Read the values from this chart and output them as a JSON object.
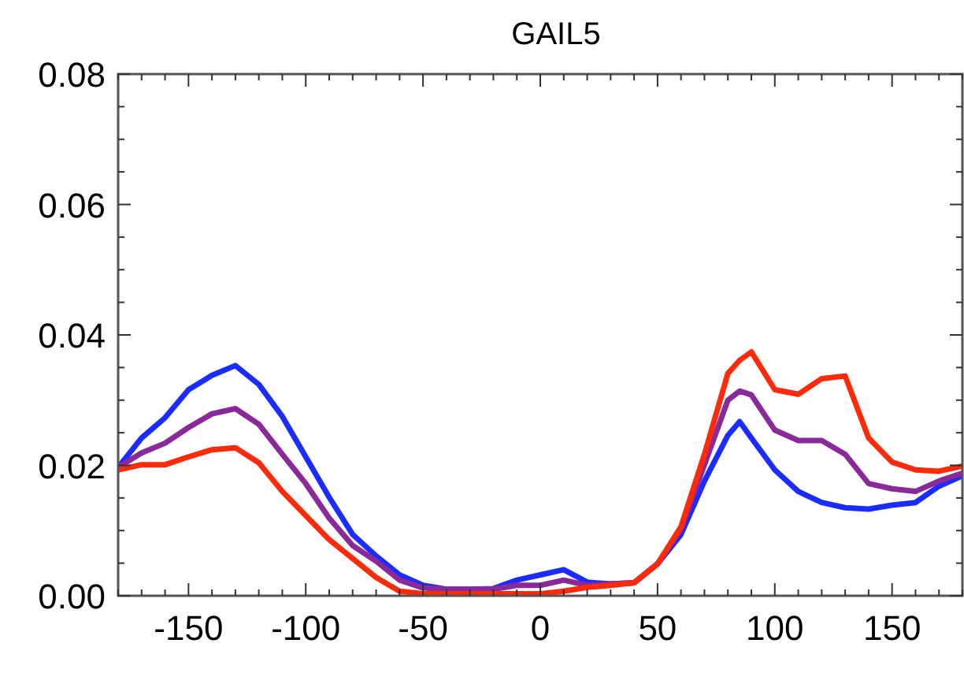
{
  "chart_data": {
    "type": "line",
    "title": "GAIL5",
    "x": [
      -180,
      -170,
      -160,
      -150,
      -140,
      -130,
      -120,
      -110,
      -100,
      -90,
      -80,
      -70,
      -60,
      -50,
      -40,
      -30,
      -20,
      -10,
      0,
      10,
      20,
      30,
      40,
      50,
      60,
      70,
      80,
      85,
      90,
      100,
      110,
      120,
      130,
      140,
      150,
      160,
      170,
      180
    ],
    "series": [
      {
        "color": "#1a2cff",
        "values": [
          0.0197,
          0.0242,
          0.0273,
          0.0316,
          0.0338,
          0.0353,
          0.0324,
          0.0275,
          0.0213,
          0.0151,
          0.0094,
          0.0061,
          0.0032,
          0.0016,
          0.001,
          0.001,
          0.0011,
          0.0024,
          0.0032,
          0.004,
          0.0021,
          0.0018,
          0.002,
          0.0049,
          0.0094,
          0.0176,
          0.0246,
          0.0267,
          0.0242,
          0.0193,
          0.016,
          0.0143,
          0.0135,
          0.0133,
          0.0139,
          0.0143,
          0.0168,
          0.0184
        ]
      },
      {
        "color": "#8a2a9a",
        "values": [
          0.0197,
          0.0219,
          0.0234,
          0.0258,
          0.0279,
          0.0287,
          0.0263,
          0.0217,
          0.0172,
          0.0119,
          0.0077,
          0.0053,
          0.0024,
          0.0012,
          0.001,
          0.001,
          0.001,
          0.0016,
          0.0016,
          0.0024,
          0.0016,
          0.0018,
          0.002,
          0.0049,
          0.0102,
          0.0201,
          0.03,
          0.0314,
          0.0308,
          0.0254,
          0.0238,
          0.0238,
          0.0217,
          0.0172,
          0.0164,
          0.016,
          0.0176,
          0.0188
        ]
      },
      {
        "color": "#ff2a0a",
        "values": [
          0.0193,
          0.0201,
          0.0201,
          0.0213,
          0.0224,
          0.0227,
          0.0204,
          0.016,
          0.0123,
          0.0086,
          0.0057,
          0.0028,
          0.0007,
          0.0003,
          0.0003,
          0.0003,
          0.0003,
          0.0003,
          0.0003,
          0.0007,
          0.0013,
          0.0016,
          0.002,
          0.0049,
          0.0106,
          0.0217,
          0.0341,
          0.0361,
          0.0374,
          0.0316,
          0.0309,
          0.0333,
          0.0337,
          0.0242,
          0.0205,
          0.0193,
          0.0191,
          0.0199
        ]
      }
    ],
    "xlim": [
      -180,
      180
    ],
    "xticks": [
      {
        "value": -180,
        "label": null
      },
      {
        "value": -170,
        "label": null
      },
      {
        "value": -160,
        "label": null
      },
      -150,
      {
        "value": -140,
        "label": null
      },
      {
        "value": -130,
        "label": null
      },
      {
        "value": -120,
        "label": null
      },
      {
        "value": -110,
        "label": null
      },
      -100,
      {
        "value": -90,
        "label": null
      },
      {
        "value": -80,
        "label": null
      },
      {
        "value": -70,
        "label": null
      },
      {
        "value": -60,
        "label": null
      },
      -50,
      {
        "value": -40,
        "label": null
      },
      {
        "value": -30,
        "label": null
      },
      {
        "value": -20,
        "label": null
      },
      {
        "value": -10,
        "label": null
      },
      0,
      {
        "value": 10,
        "label": null
      },
      {
        "value": 20,
        "label": null
      },
      {
        "value": 30,
        "label": null
      },
      {
        "value": 40,
        "label": null
      },
      50,
      {
        "value": 60,
        "label": null
      },
      {
        "value": 70,
        "label": null
      },
      {
        "value": 80,
        "label": null
      },
      {
        "value": 90,
        "label": null
      },
      100,
      {
        "value": 110,
        "label": null
      },
      {
        "value": 120,
        "label": null
      },
      {
        "value": 130,
        "label": null
      },
      {
        "value": 140,
        "label": null
      },
      150,
      {
        "value": 160,
        "label": null
      },
      {
        "value": 170,
        "label": null
      },
      {
        "value": 180,
        "label": null
      }
    ],
    "ylim": [
      0,
      0.08
    ],
    "yticks": [
      {
        "value": 0,
        "label": "0.00"
      },
      {
        "value": 0.005,
        "label": null
      },
      {
        "value": 0.01,
        "label": null
      },
      {
        "value": 0.015,
        "label": null
      },
      {
        "value": 0.02,
        "label": "0.02"
      },
      {
        "value": 0.025,
        "label": null
      },
      {
        "value": 0.03,
        "label": null
      },
      {
        "value": 0.035,
        "label": null
      },
      {
        "value": 0.04,
        "label": "0.04"
      },
      {
        "value": 0.045,
        "label": null
      },
      {
        "value": 0.05,
        "label": null
      },
      {
        "value": 0.055,
        "label": null
      },
      {
        "value": 0.06,
        "label": "0.06"
      },
      {
        "value": 0.065,
        "label": null
      },
      {
        "value": 0.07,
        "label": null
      },
      {
        "value": 0.075,
        "label": null
      },
      {
        "value": 0.08,
        "label": "0.08"
      }
    ],
    "grid": false,
    "marker": "none",
    "line_style": "solid"
  }
}
